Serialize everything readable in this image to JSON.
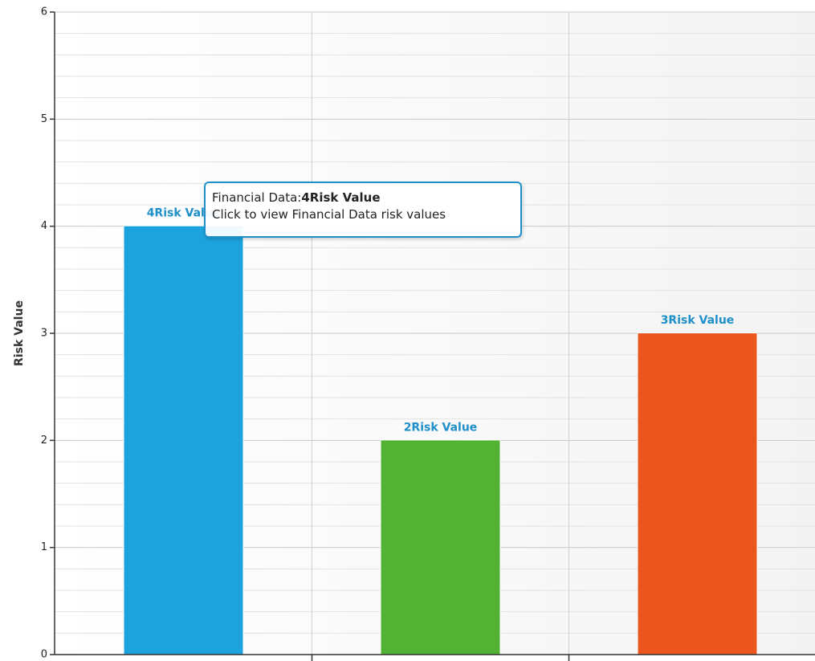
{
  "chart_data": {
    "type": "bar",
    "categories": [
      "Financial Data",
      "",
      ""
    ],
    "values": [
      4,
      2,
      3
    ],
    "data_labels": [
      "4Risk Value",
      "2Risk Value",
      "3Risk Value"
    ],
    "colors": [
      "#1ca3de",
      "#51b233",
      "#ea561d"
    ],
    "ylabel": "Risk Value",
    "xlabel": "",
    "title": "",
    "ylim": [
      0,
      6
    ],
    "yticks": [
      "0",
      "1",
      "2",
      "3",
      "4",
      "5",
      "6"
    ],
    "grid": true,
    "legend": "none"
  },
  "tooltip": {
    "series_prefix": "Financial Data:",
    "value_text": "4Risk Value",
    "hint": "Click to view Financial Data risk values"
  }
}
